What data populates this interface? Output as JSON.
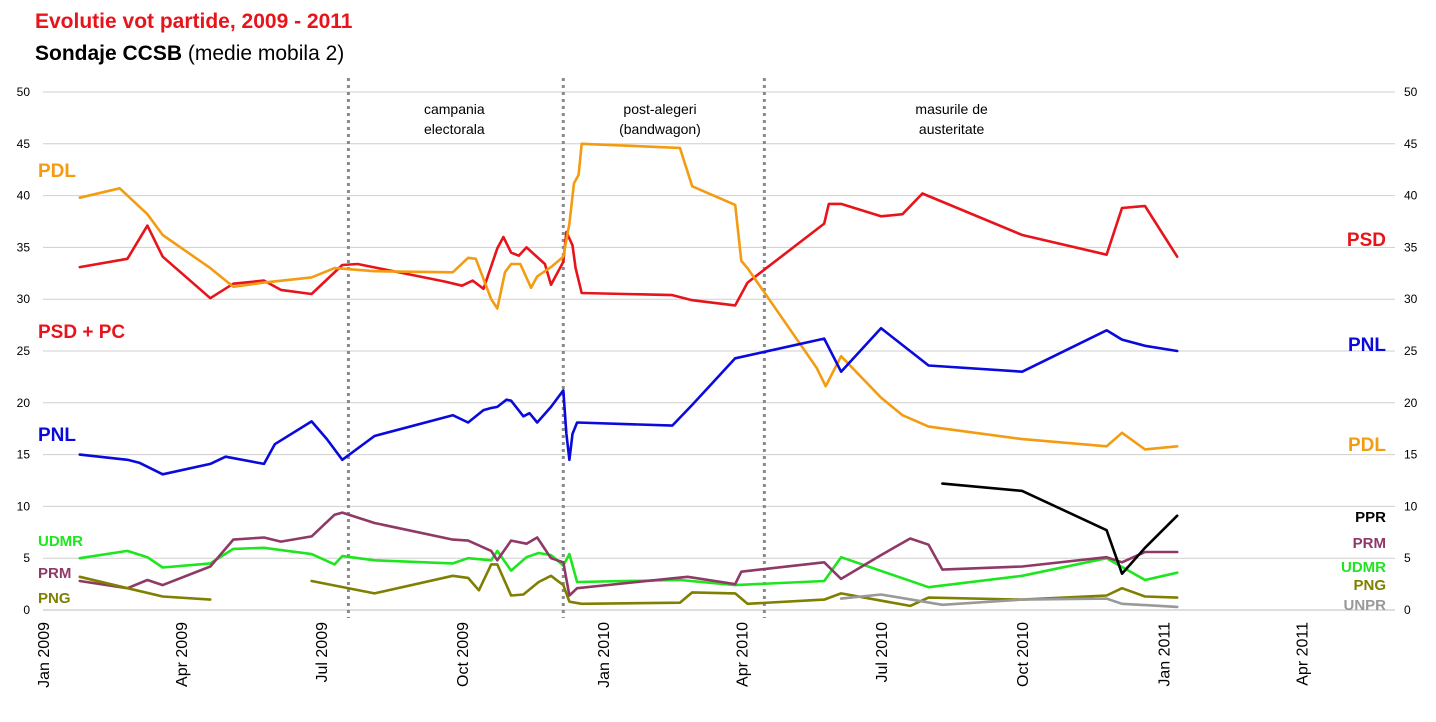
{
  "header": {
    "title": "Evolutie vot partide, 2009 - 2011",
    "subtitle_bold": "Sondaje CCSB",
    "subtitle_rest": " (medie mobila 2)"
  },
  "chart_data": {
    "type": "line",
    "title": "Evolutie vot partide, 2009 - 2011",
    "subtitle": "Sondaje CCSB (medie mobila 2)",
    "xlabel": "",
    "ylabel": "",
    "ylim": [
      0,
      50
    ],
    "yticks": [
      0,
      5,
      10,
      15,
      20,
      25,
      30,
      35,
      40,
      45,
      50
    ],
    "xlim": [
      "2009-01-01",
      "2011-05-15"
    ],
    "xticks": [
      {
        "date": "2009-01-01",
        "label": "Jan 2009"
      },
      {
        "date": "2009-04-01",
        "label": "Apr 2009"
      },
      {
        "date": "2009-07-01",
        "label": "Jul 2009"
      },
      {
        "date": "2009-10-01",
        "label": "Oct 2009"
      },
      {
        "date": "2010-01-01",
        "label": "Jan 2010"
      },
      {
        "date": "2010-04-01",
        "label": "Apr 2010"
      },
      {
        "date": "2010-07-01",
        "label": "Jul 2010"
      },
      {
        "date": "2010-10-01",
        "label": "Oct 2010"
      },
      {
        "date": "2011-01-01",
        "label": "Jan 2011"
      },
      {
        "date": "2011-04-01",
        "label": "Apr 2011"
      }
    ],
    "grid": true,
    "dividers": [
      "2009-07-19",
      "2009-12-06",
      "2010-04-16"
    ],
    "annotations": [
      {
        "lines": [
          "campania",
          "electorala"
        ],
        "date": "2009-09-26"
      },
      {
        "lines": [
          "post-alegeri",
          "(bandwagon)"
        ],
        "date": "2010-02-07"
      },
      {
        "lines": [
          "masurile de",
          "austeritate"
        ],
        "date": "2010-08-16"
      }
    ],
    "series": [
      {
        "left_label": "PSD + PC",
        "right_label": "PSD",
        "color": "#e8141b",
        "points": [
          [
            "2009-01-25",
            33.1
          ],
          [
            "2009-02-25",
            33.9
          ],
          [
            "2009-03-10",
            37.1
          ],
          [
            "2009-03-20",
            34.1
          ],
          [
            "2009-04-20",
            30.1
          ],
          [
            "2009-05-05",
            31.5
          ],
          [
            "2009-05-25",
            31.8
          ],
          [
            "2009-06-05",
            30.9
          ],
          [
            "2009-06-25",
            30.5
          ],
          [
            "2009-07-15",
            33.3
          ],
          [
            "2009-07-25",
            33.4
          ],
          [
            "2009-09-20",
            31.7
          ],
          [
            "2009-10-01",
            31.3
          ],
          [
            "2009-10-08",
            31.8
          ],
          [
            "2009-10-15",
            31.0
          ],
          [
            "2009-10-24",
            34.9
          ],
          [
            "2009-10-28",
            36.0
          ],
          [
            "2009-11-02",
            34.5
          ],
          [
            "2009-11-07",
            34.2
          ],
          [
            "2009-11-12",
            35.0
          ],
          [
            "2009-11-24",
            33.4
          ],
          [
            "2009-11-28",
            31.4
          ],
          [
            "2009-12-06",
            33.6
          ],
          [
            "2009-12-08",
            36.5
          ],
          [
            "2009-12-12",
            35.2
          ],
          [
            "2009-12-14",
            33.0
          ],
          [
            "2009-12-18",
            30.6
          ],
          [
            "2010-02-15",
            30.4
          ],
          [
            "2010-02-28",
            29.9
          ],
          [
            "2010-03-28",
            29.4
          ],
          [
            "2010-04-05",
            31.6
          ],
          [
            "2010-05-25",
            37.3
          ],
          [
            "2010-05-28",
            39.2
          ],
          [
            "2010-06-05",
            39.2
          ],
          [
            "2010-07-01",
            38.0
          ],
          [
            "2010-07-15",
            38.2
          ],
          [
            "2010-07-28",
            40.2
          ],
          [
            "2010-10-01",
            36.2
          ],
          [
            "2010-11-25",
            34.3
          ],
          [
            "2010-12-05",
            38.8
          ],
          [
            "2010-12-20",
            39.0
          ],
          [
            "2011-01-10",
            34.1
          ]
        ]
      },
      {
        "left_label": "PDL",
        "right_label": "PDL",
        "color": "#f39c12",
        "points": [
          [
            "2009-01-25",
            39.8
          ],
          [
            "2009-02-20",
            40.7
          ],
          [
            "2009-03-10",
            38.2
          ],
          [
            "2009-03-20",
            36.2
          ],
          [
            "2009-04-20",
            33.0
          ],
          [
            "2009-05-05",
            31.2
          ],
          [
            "2009-05-25",
            31.6
          ],
          [
            "2009-06-25",
            32.1
          ],
          [
            "2009-07-10",
            33.0
          ],
          [
            "2009-08-05",
            32.7
          ],
          [
            "2009-09-25",
            32.6
          ],
          [
            "2009-10-05",
            34.0
          ],
          [
            "2009-10-10",
            33.9
          ],
          [
            "2009-10-20",
            30.0
          ],
          [
            "2009-10-24",
            29.1
          ],
          [
            "2009-10-29",
            32.6
          ],
          [
            "2009-11-02",
            33.4
          ],
          [
            "2009-11-08",
            33.4
          ],
          [
            "2009-11-15",
            31.1
          ],
          [
            "2009-11-19",
            32.2
          ],
          [
            "2009-11-28",
            33.1
          ],
          [
            "2009-12-06",
            34.1
          ],
          [
            "2009-12-10",
            37.3
          ],
          [
            "2009-12-13",
            41.2
          ],
          [
            "2009-12-16",
            42.0
          ],
          [
            "2009-12-18",
            45.0
          ],
          [
            "2010-02-20",
            44.6
          ],
          [
            "2010-02-28",
            40.9
          ],
          [
            "2010-03-28",
            39.1
          ],
          [
            "2010-04-01",
            33.7
          ],
          [
            "2010-04-05",
            33.0
          ],
          [
            "2010-05-20",
            23.4
          ],
          [
            "2010-05-26",
            21.6
          ],
          [
            "2010-06-05",
            24.5
          ],
          [
            "2010-07-01",
            20.5
          ],
          [
            "2010-07-15",
            18.8
          ],
          [
            "2010-08-01",
            17.7
          ],
          [
            "2010-10-01",
            16.5
          ],
          [
            "2010-11-25",
            15.8
          ],
          [
            "2010-12-05",
            17.1
          ],
          [
            "2010-12-20",
            15.5
          ],
          [
            "2011-01-10",
            15.8
          ]
        ]
      },
      {
        "left_label": "PNL",
        "right_label": "PNL",
        "color": "#0a0adc",
        "points": [
          [
            "2009-01-25",
            15.0
          ],
          [
            "2009-02-25",
            14.5
          ],
          [
            "2009-03-05",
            14.2
          ],
          [
            "2009-03-20",
            13.1
          ],
          [
            "2009-04-20",
            14.1
          ],
          [
            "2009-04-30",
            14.8
          ],
          [
            "2009-05-25",
            14.1
          ],
          [
            "2009-06-01",
            16.0
          ],
          [
            "2009-06-25",
            18.2
          ],
          [
            "2009-07-05",
            16.5
          ],
          [
            "2009-07-15",
            14.5
          ],
          [
            "2009-08-05",
            16.8
          ],
          [
            "2009-09-25",
            18.8
          ],
          [
            "2009-10-05",
            18.1
          ],
          [
            "2009-10-15",
            19.3
          ],
          [
            "2009-10-20",
            19.5
          ],
          [
            "2009-10-24",
            19.6
          ],
          [
            "2009-10-30",
            20.3
          ],
          [
            "2009-11-02",
            20.2
          ],
          [
            "2009-11-10",
            18.7
          ],
          [
            "2009-11-14",
            19.0
          ],
          [
            "2009-11-19",
            18.1
          ],
          [
            "2009-11-28",
            19.6
          ],
          [
            "2009-12-06",
            21.2
          ],
          [
            "2009-12-08",
            17.0
          ],
          [
            "2009-12-10",
            14.5
          ],
          [
            "2009-12-12",
            17.0
          ],
          [
            "2009-12-15",
            18.1
          ],
          [
            "2010-02-15",
            17.8
          ],
          [
            "2010-02-28",
            19.8
          ],
          [
            "2010-03-28",
            24.3
          ],
          [
            "2010-05-25",
            26.2
          ],
          [
            "2010-06-05",
            23.0
          ],
          [
            "2010-07-01",
            27.2
          ],
          [
            "2010-08-01",
            23.6
          ],
          [
            "2010-10-01",
            23.0
          ],
          [
            "2010-11-25",
            27.0
          ],
          [
            "2010-12-05",
            26.1
          ],
          [
            "2010-12-20",
            25.5
          ],
          [
            "2011-01-10",
            25.0
          ]
        ]
      },
      {
        "left_label": "UDMR",
        "right_label": "UDMR",
        "color": "#1ee61e",
        "points": [
          [
            "2009-01-25",
            5.0
          ],
          [
            "2009-02-25",
            5.7
          ],
          [
            "2009-03-10",
            5.1
          ],
          [
            "2009-03-20",
            4.1
          ],
          [
            "2009-04-20",
            4.5
          ],
          [
            "2009-05-05",
            5.9
          ],
          [
            "2009-05-25",
            6.0
          ],
          [
            "2009-06-25",
            5.4
          ],
          [
            "2009-07-10",
            4.4
          ],
          [
            "2009-07-15",
            5.2
          ],
          [
            "2009-08-05",
            4.8
          ],
          [
            "2009-09-25",
            4.5
          ],
          [
            "2009-10-05",
            5.0
          ],
          [
            "2009-10-20",
            4.8
          ],
          [
            "2009-10-24",
            5.7
          ],
          [
            "2009-11-02",
            3.8
          ],
          [
            "2009-11-12",
            5.1
          ],
          [
            "2009-11-20",
            5.5
          ],
          [
            "2009-11-28",
            5.3
          ],
          [
            "2009-12-06",
            4.3
          ],
          [
            "2009-12-10",
            5.4
          ],
          [
            "2009-12-15",
            2.7
          ],
          [
            "2010-02-20",
            2.9
          ],
          [
            "2010-03-28",
            2.4
          ],
          [
            "2010-05-25",
            2.8
          ],
          [
            "2010-06-05",
            5.1
          ],
          [
            "2010-08-01",
            2.2
          ],
          [
            "2010-10-01",
            3.3
          ],
          [
            "2010-11-25",
            5.0
          ],
          [
            "2010-12-20",
            2.9
          ],
          [
            "2011-01-10",
            3.6
          ]
        ]
      },
      {
        "left_label": "PRM",
        "right_label": "PRM",
        "color": "#8e3966",
        "points": [
          [
            "2009-01-25",
            2.8
          ],
          [
            "2009-02-25",
            2.1
          ],
          [
            "2009-03-10",
            2.9
          ],
          [
            "2009-03-20",
            2.4
          ],
          [
            "2009-04-20",
            4.2
          ],
          [
            "2009-05-05",
            6.8
          ],
          [
            "2009-05-25",
            7.0
          ],
          [
            "2009-06-05",
            6.6
          ],
          [
            "2009-06-25",
            7.1
          ],
          [
            "2009-07-10",
            9.2
          ],
          [
            "2009-07-15",
            9.4
          ],
          [
            "2009-08-05",
            8.4
          ],
          [
            "2009-09-25",
            6.8
          ],
          [
            "2009-10-05",
            6.7
          ],
          [
            "2009-10-20",
            5.7
          ],
          [
            "2009-10-24",
            4.8
          ],
          [
            "2009-11-02",
            6.7
          ],
          [
            "2009-11-12",
            6.4
          ],
          [
            "2009-11-19",
            7.0
          ],
          [
            "2009-11-28",
            5.0
          ],
          [
            "2009-12-06",
            4.6
          ],
          [
            "2009-12-10",
            1.4
          ],
          [
            "2009-12-15",
            2.1
          ],
          [
            "2010-02-25",
            3.2
          ],
          [
            "2010-03-28",
            2.5
          ],
          [
            "2010-04-01",
            3.7
          ],
          [
            "2010-05-25",
            4.6
          ],
          [
            "2010-06-05",
            3.0
          ],
          [
            "2010-07-01",
            5.3
          ],
          [
            "2010-07-20",
            6.9
          ],
          [
            "2010-08-01",
            6.3
          ],
          [
            "2010-08-10",
            3.9
          ],
          [
            "2010-10-01",
            4.2
          ],
          [
            "2010-11-25",
            5.1
          ],
          [
            "2010-12-05",
            4.6
          ],
          [
            "2010-12-20",
            5.6
          ],
          [
            "2011-01-10",
            5.6
          ]
        ]
      },
      {
        "left_label": "PNG",
        "right_label": "PNG",
        "color": "#7f7f00",
        "points": [
          [
            "2009-01-25",
            3.2
          ],
          [
            "2009-02-25",
            2.1
          ],
          [
            "2009-03-20",
            1.3
          ],
          [
            "2009-04-20",
            1.0
          ]
        ]
      },
      {
        "left_label": "",
        "right_label": "",
        "color": "#7f7f00",
        "points": [
          [
            "2009-06-25",
            2.8
          ],
          [
            "2009-08-05",
            1.6
          ],
          [
            "2009-09-25",
            3.3
          ],
          [
            "2009-10-05",
            3.1
          ],
          [
            "2009-10-12",
            1.9
          ],
          [
            "2009-10-20",
            4.4
          ],
          [
            "2009-10-24",
            4.4
          ],
          [
            "2009-11-02",
            1.4
          ],
          [
            "2009-11-10",
            1.5
          ],
          [
            "2009-11-20",
            2.7
          ],
          [
            "2009-11-28",
            3.3
          ],
          [
            "2009-12-06",
            2.4
          ],
          [
            "2009-12-10",
            0.8
          ],
          [
            "2009-12-18",
            0.6
          ],
          [
            "2010-02-20",
            0.7
          ],
          [
            "2010-02-28",
            1.7
          ],
          [
            "2010-03-28",
            1.6
          ],
          [
            "2010-04-05",
            0.6
          ],
          [
            "2010-05-25",
            1.0
          ],
          [
            "2010-06-05",
            1.6
          ],
          [
            "2010-07-20",
            0.4
          ],
          [
            "2010-08-01",
            1.2
          ],
          [
            "2010-10-01",
            1.0
          ],
          [
            "2010-11-25",
            1.4
          ],
          [
            "2010-12-05",
            2.1
          ],
          [
            "2010-12-20",
            1.3
          ],
          [
            "2011-01-10",
            1.2
          ]
        ]
      },
      {
        "left_label": "",
        "right_label": "PPR",
        "color": "#000000",
        "points": [
          [
            "2010-08-10",
            12.2
          ],
          [
            "2010-10-01",
            11.5
          ],
          [
            "2010-11-25",
            7.7
          ],
          [
            "2010-12-05",
            3.5
          ],
          [
            "2010-12-20",
            6.0
          ],
          [
            "2011-01-10",
            9.1
          ]
        ]
      },
      {
        "left_label": "",
        "right_label": "UNPR",
        "color": "#999999",
        "points": [
          [
            "2010-06-05",
            1.1
          ],
          [
            "2010-07-01",
            1.5
          ],
          [
            "2010-08-10",
            0.5
          ],
          [
            "2010-10-01",
            1.0
          ],
          [
            "2010-11-25",
            1.1
          ],
          [
            "2010-12-05",
            0.6
          ],
          [
            "2011-01-10",
            0.3
          ]
        ]
      }
    ]
  }
}
